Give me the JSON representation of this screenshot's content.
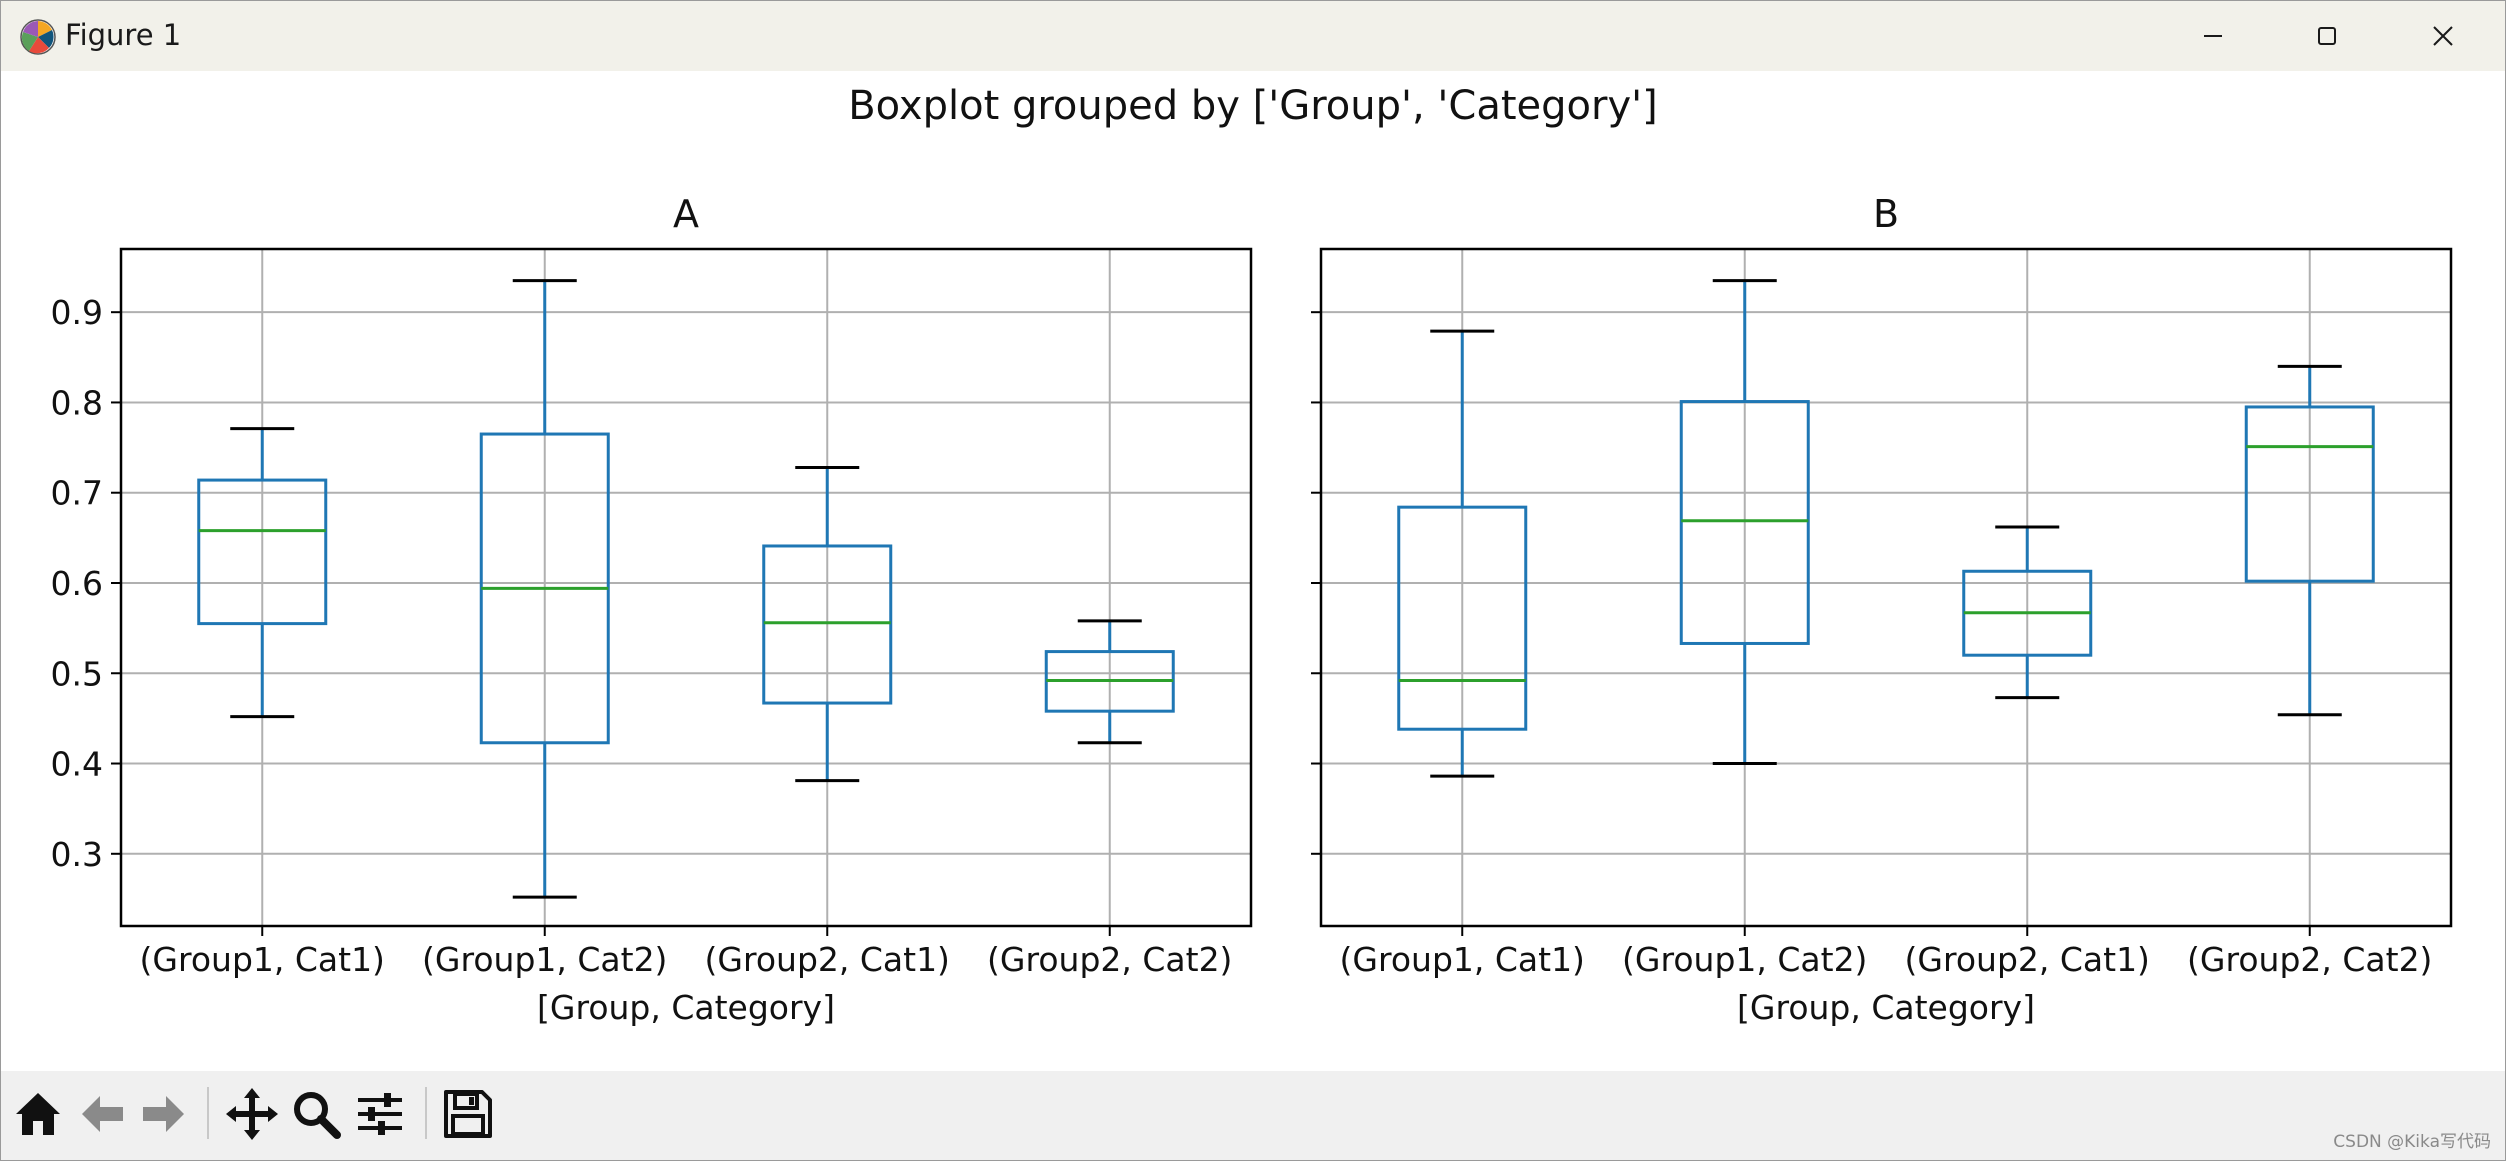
{
  "window": {
    "title": "Figure 1",
    "icon": "matplotlib-logo-icon",
    "controls": [
      "minimize-icon",
      "maximize-icon",
      "close-icon"
    ]
  },
  "toolbar": {
    "tools": [
      "home-icon",
      "back-arrow-icon",
      "forward-arrow-icon",
      "pan-move-icon",
      "zoom-magnifier-icon",
      "subplots-config-icon",
      "save-floppy-icon"
    ]
  },
  "watermark": "CSDN @Kika写代码",
  "chart_data": {
    "type": "boxplot",
    "suptitle": "Boxplot grouped by ['Group', 'Category']",
    "xlabel": "[Group, Category]",
    "categories": [
      "(Group1, Cat1)",
      "(Group1, Cat2)",
      "(Group2, Cat1)",
      "(Group2, Cat2)"
    ],
    "ylim": [
      0.22,
      0.97
    ],
    "yticks": [
      0.3,
      0.4,
      0.5,
      0.6,
      0.7,
      0.8,
      0.9
    ],
    "ytick_labels": [
      "0.3",
      "0.4",
      "0.5",
      "0.6",
      "0.7",
      "0.8",
      "0.9"
    ],
    "grid": true,
    "sharey": true,
    "colors": {
      "box": "#1f77b4",
      "median": "#2ca02c",
      "whisker_cap": "#000000",
      "grid": "#b0b0b0"
    },
    "panels": [
      {
        "title": "A",
        "boxes": [
          {
            "whislo": 0.452,
            "q1": 0.555,
            "med": 0.658,
            "q3": 0.714,
            "whishi": 0.771
          },
          {
            "whislo": 0.252,
            "q1": 0.423,
            "med": 0.594,
            "q3": 0.765,
            "whishi": 0.935
          },
          {
            "whislo": 0.381,
            "q1": 0.467,
            "med": 0.556,
            "q3": 0.641,
            "whishi": 0.728
          },
          {
            "whislo": 0.423,
            "q1": 0.458,
            "med": 0.492,
            "q3": 0.524,
            "whishi": 0.558
          }
        ]
      },
      {
        "title": "B",
        "boxes": [
          {
            "whislo": 0.386,
            "q1": 0.438,
            "med": 0.492,
            "q3": 0.684,
            "whishi": 0.879
          },
          {
            "whislo": 0.4,
            "q1": 0.533,
            "med": 0.669,
            "q3": 0.801,
            "whishi": 0.935
          },
          {
            "whislo": 0.473,
            "q1": 0.52,
            "med": 0.567,
            "q3": 0.613,
            "whishi": 0.662
          },
          {
            "whislo": 0.454,
            "q1": 0.602,
            "med": 0.751,
            "q3": 0.795,
            "whishi": 0.84
          }
        ]
      }
    ]
  }
}
